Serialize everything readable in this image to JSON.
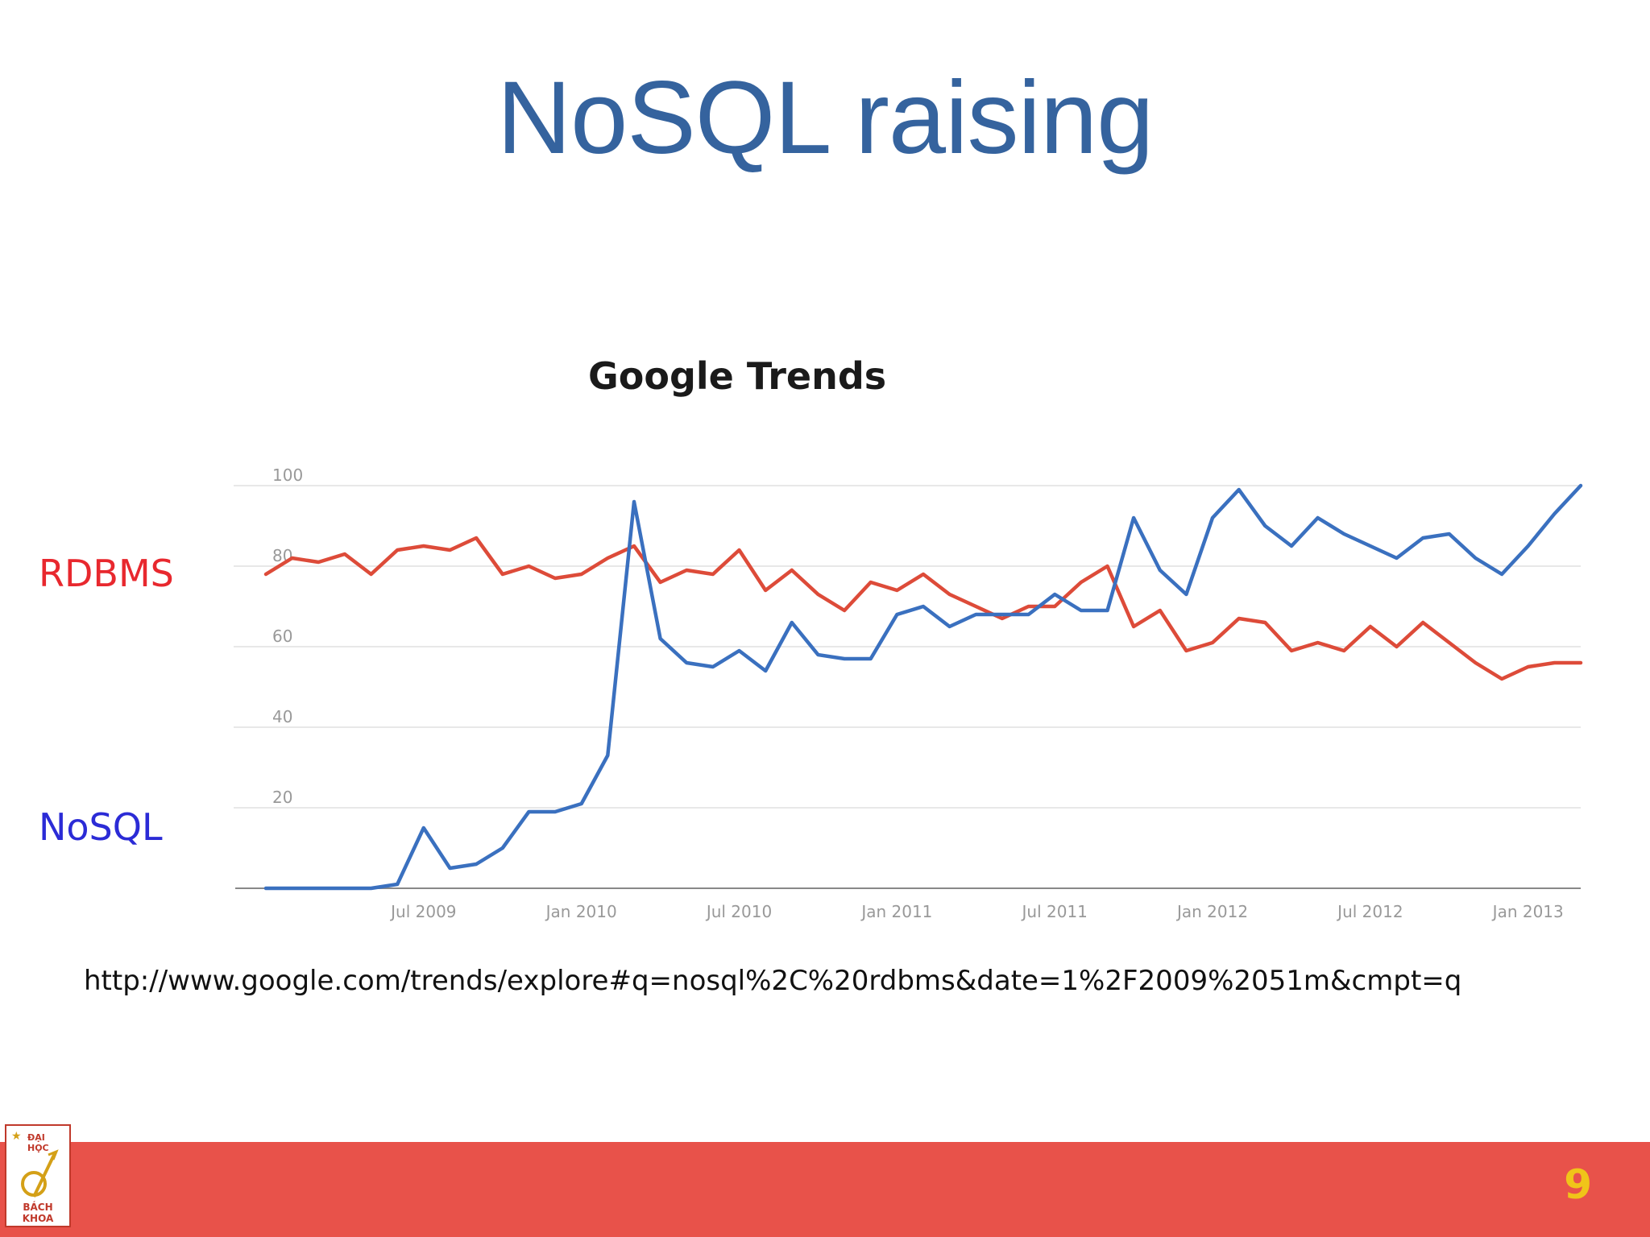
{
  "slide": {
    "title": "NoSQL raising",
    "source_url": "http://www.google.com/trends/explore#q=nosql%2C%20rdbms&date=1%2F2009%2051m&cmpt=q",
    "page_number": "9",
    "logo": {
      "top_text": "ĐẠI HỌC",
      "bottom_text": "BÁCH KHOA"
    },
    "colors": {
      "title": "#35639e",
      "footer": "#e8524a",
      "page_number": "#f0c419"
    }
  },
  "chart_data": {
    "type": "line",
    "title": "Google Trends",
    "xlabel": "",
    "ylabel": "",
    "ylim": [
      0,
      100
    ],
    "yticks": [
      20,
      40,
      60,
      80,
      100
    ],
    "xticks": [
      "Jul 2009",
      "Jan 2010",
      "Jul 2010",
      "Jan 2011",
      "Jul 2011",
      "Jan 2012",
      "Jul 2012",
      "Jan 2013"
    ],
    "x_start": "Jan 2009",
    "x_end": "Mar 2013",
    "grid": true,
    "series": [
      {
        "name": "RDBMS",
        "color": "#dd4b39",
        "label_color": "#e8282e",
        "values": [
          78,
          82,
          81,
          83,
          78,
          84,
          85,
          84,
          87,
          78,
          80,
          77,
          78,
          82,
          85,
          76,
          79,
          78,
          84,
          74,
          79,
          73,
          69,
          76,
          74,
          78,
          73,
          70,
          67,
          70,
          70,
          76,
          80,
          65,
          69,
          59,
          61,
          67,
          66,
          59,
          61,
          59,
          65,
          60,
          66,
          61,
          56,
          52,
          55,
          56,
          56
        ]
      },
      {
        "name": "NoSQL",
        "color": "#3a70bf",
        "label_color": "#2b2bd6",
        "values": [
          0,
          0,
          0,
          0,
          0,
          1,
          15,
          5,
          6,
          10,
          19,
          19,
          21,
          33,
          96,
          62,
          56,
          55,
          59,
          54,
          66,
          58,
          57,
          57,
          68,
          70,
          65,
          68,
          68,
          68,
          73,
          69,
          69,
          92,
          79,
          73,
          92,
          99,
          90,
          85,
          92,
          88,
          85,
          82,
          87,
          88,
          82,
          78,
          85,
          93,
          100
        ]
      }
    ]
  }
}
